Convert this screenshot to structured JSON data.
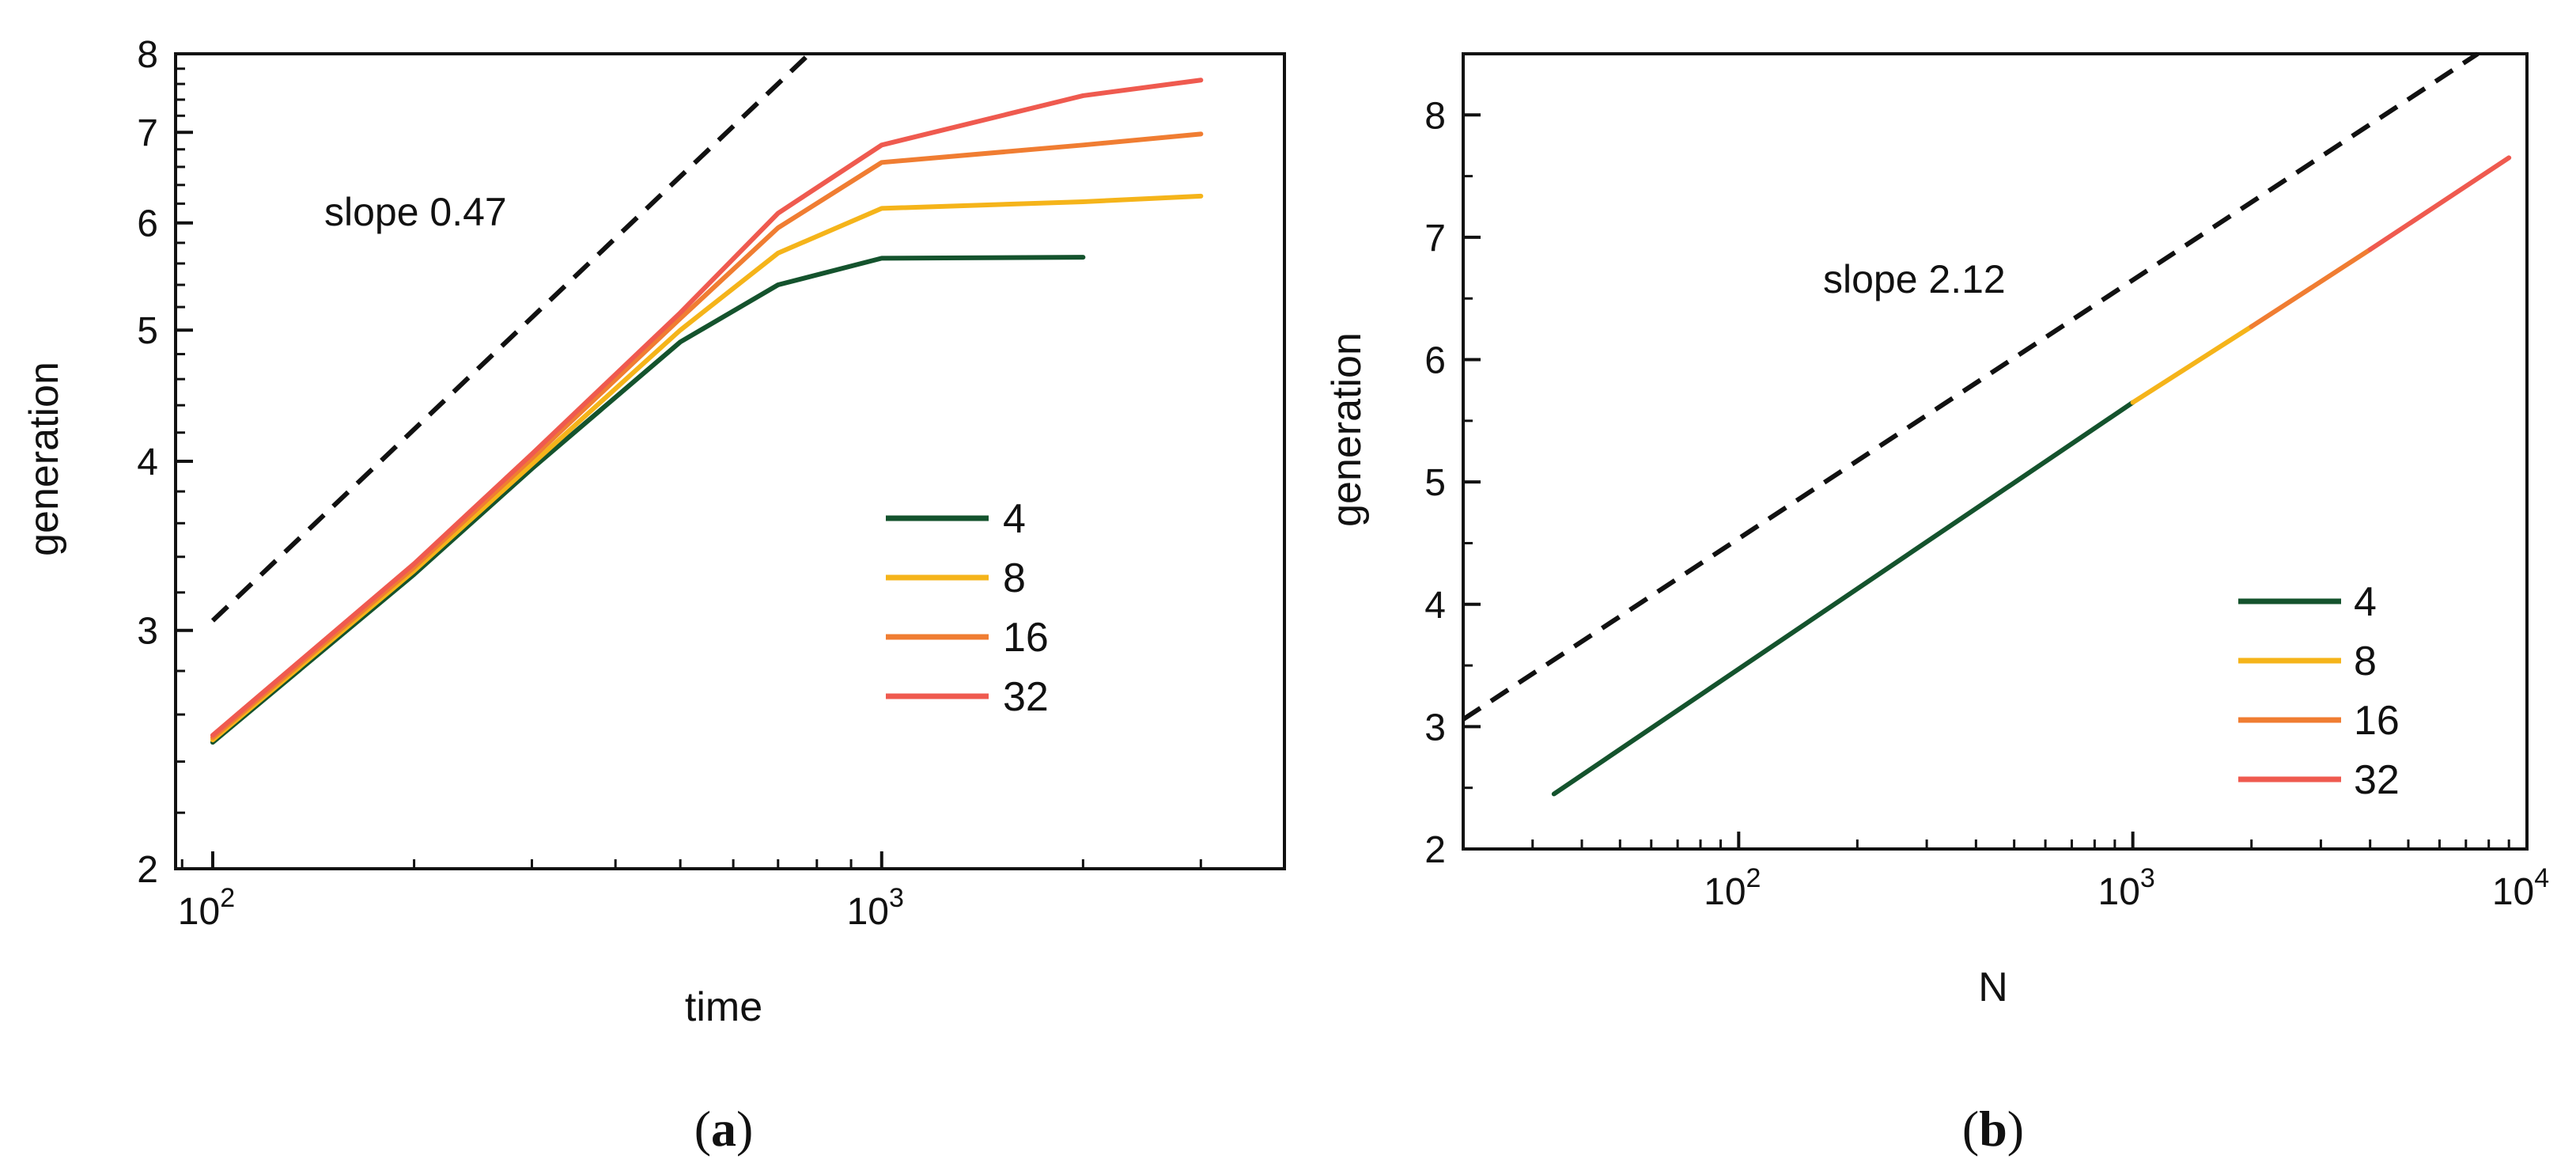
{
  "colors": {
    "n4": "#14532d",
    "n8": "#f5b41a",
    "n16": "#f07d32",
    "n32": "#ef5a4f",
    "ref": "#111111"
  },
  "chart_data": [
    {
      "type": "line",
      "panel_label": "a",
      "xlabel": "time",
      "ylabel": "generation",
      "xscale": "log",
      "yscale": "log",
      "xlim": [
        88,
        4000
      ],
      "ylim": [
        2,
        8
      ],
      "xticks": [
        {
          "v": 100,
          "base": "10",
          "exp": "2"
        },
        {
          "v": 1000,
          "base": "10",
          "exp": "3"
        }
      ],
      "yticks": [
        {
          "v": 2,
          "label": "2"
        },
        {
          "v": 3,
          "label": "3"
        },
        {
          "v": 4,
          "label": "4"
        },
        {
          "v": 5,
          "label": "5"
        },
        {
          "v": 6,
          "label": "6"
        },
        {
          "v": 7,
          "label": "7"
        },
        {
          "v": 8,
          "label": "8"
        }
      ],
      "annotation": "slope 0.47",
      "reference_line": {
        "points": [
          [
            100,
            3.05
          ],
          [
            780,
            8
          ]
        ],
        "style": "dashed"
      },
      "series": [
        {
          "name": "4",
          "color_key": "n4",
          "points": [
            [
              100,
              2.48
            ],
            [
              200,
              3.3
            ],
            [
              300,
              3.95
            ],
            [
              500,
              4.9
            ],
            [
              700,
              5.4
            ],
            [
              1000,
              5.65
            ],
            [
              2000,
              5.66
            ]
          ]
        },
        {
          "name": "8",
          "color_key": "n8",
          "points": [
            [
              100,
              2.49
            ],
            [
              200,
              3.32
            ],
            [
              300,
              3.98
            ],
            [
              500,
              5.0
            ],
            [
              700,
              5.7
            ],
            [
              1000,
              6.15
            ],
            [
              2000,
              6.22
            ],
            [
              3000,
              6.28
            ]
          ]
        },
        {
          "name": "16",
          "color_key": "n16",
          "points": [
            [
              100,
              2.5
            ],
            [
              200,
              3.34
            ],
            [
              300,
              4.02
            ],
            [
              500,
              5.1
            ],
            [
              700,
              5.95
            ],
            [
              1000,
              6.65
            ],
            [
              2000,
              6.85
            ],
            [
              3000,
              6.98
            ]
          ]
        },
        {
          "name": "32",
          "color_key": "n32",
          "points": [
            [
              100,
              2.51
            ],
            [
              200,
              3.36
            ],
            [
              300,
              4.05
            ],
            [
              500,
              5.15
            ],
            [
              700,
              6.1
            ],
            [
              1000,
              6.85
            ],
            [
              2000,
              7.45
            ],
            [
              3000,
              7.65
            ]
          ]
        }
      ]
    },
    {
      "type": "line",
      "panel_label": "b",
      "xlabel": "N",
      "ylabel": "generation",
      "xscale": "log",
      "yscale": "linear",
      "xlim": [
        20,
        10000
      ],
      "ylim": [
        2,
        8.5
      ],
      "xticks": [
        {
          "v": 100,
          "base": "10",
          "exp": "2"
        },
        {
          "v": 1000,
          "base": "10",
          "exp": "3"
        },
        {
          "v": 10000,
          "base": "10",
          "exp": "4"
        }
      ],
      "yticks": [
        {
          "v": 2,
          "label": "2"
        },
        {
          "v": 3,
          "label": "3"
        },
        {
          "v": 4,
          "label": "4"
        },
        {
          "v": 5,
          "label": "5"
        },
        {
          "v": 6,
          "label": "6"
        },
        {
          "v": 7,
          "label": "7"
        },
        {
          "v": 8,
          "label": "8"
        }
      ],
      "annotation": "slope 2.12",
      "reference_line": {
        "points": [
          [
            20,
            3.06
          ],
          [
            7500,
            8.5
          ]
        ],
        "style": "dashed"
      },
      "series": [
        {
          "name": "4",
          "color_key": "n4",
          "points": [
            [
              34,
              2.45
            ],
            [
              1000,
              5.65
            ]
          ]
        },
        {
          "name": "8",
          "color_key": "n8",
          "points": [
            [
              1000,
              5.65
            ],
            [
              2000,
              6.27
            ]
          ]
        },
        {
          "name": "16",
          "color_key": "n16",
          "points": [
            [
              2000,
              6.27
            ],
            [
              4000,
              6.9
            ]
          ]
        },
        {
          "name": "32",
          "color_key": "n32",
          "points": [
            [
              4000,
              6.9
            ],
            [
              9000,
              7.65
            ]
          ]
        }
      ]
    }
  ]
}
